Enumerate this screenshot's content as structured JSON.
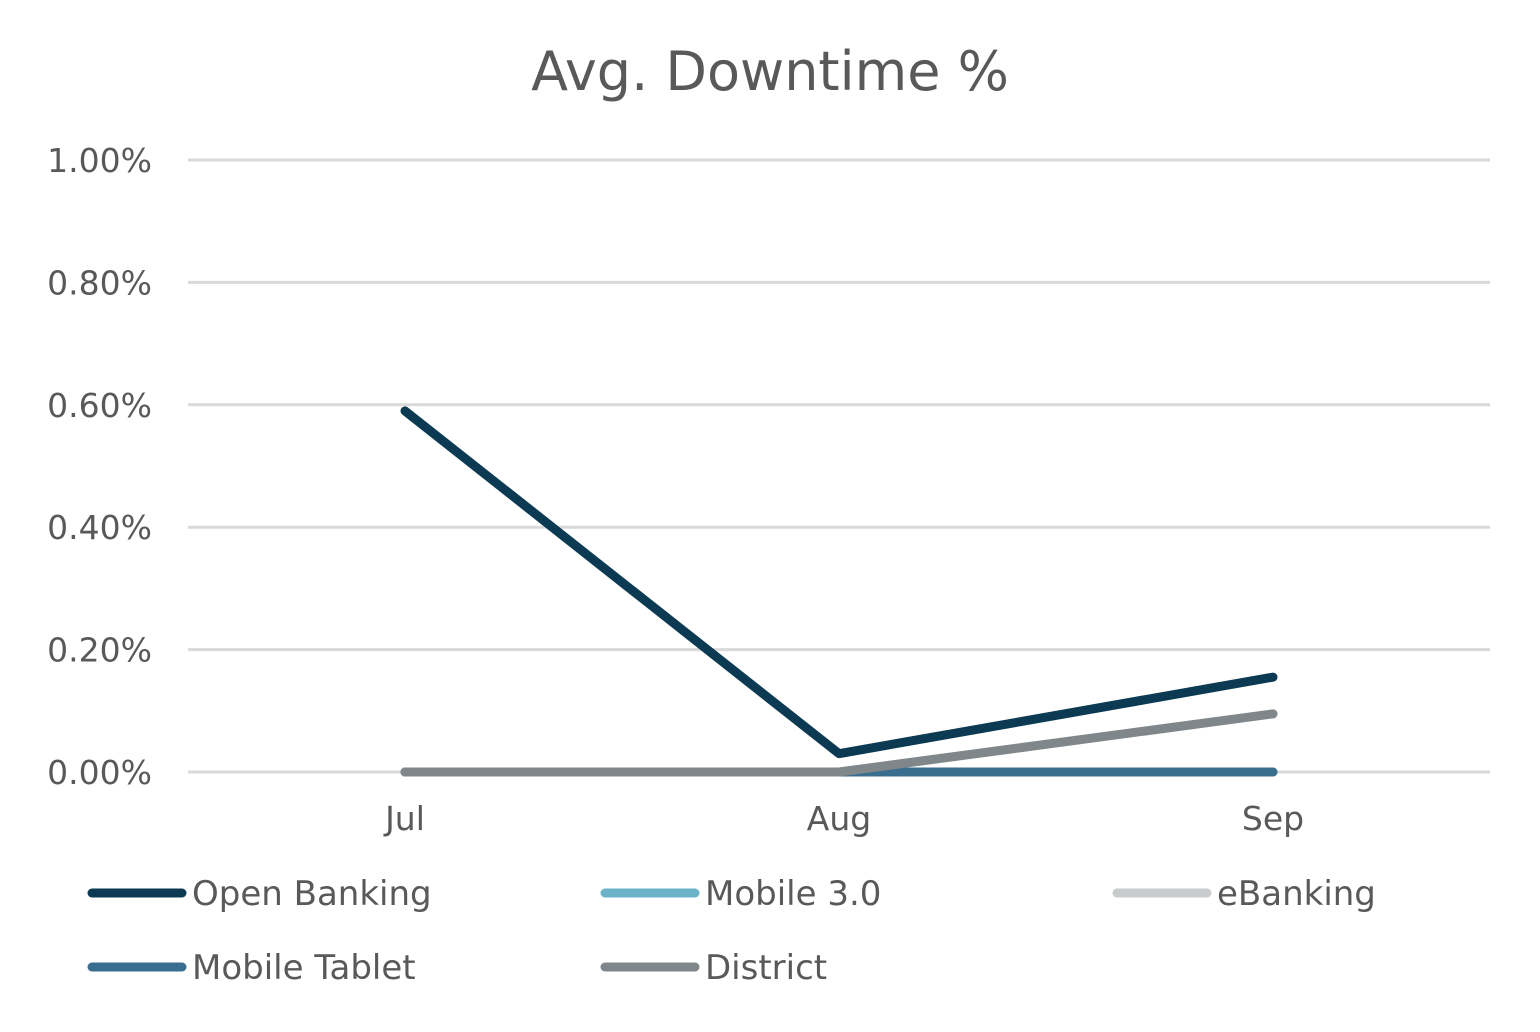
{
  "chart_data": {
    "type": "line",
    "title": "Avg. Downtime %",
    "xlabel": "",
    "ylabel": "",
    "categories": [
      "Jul",
      "Aug",
      "Sep"
    ],
    "ylim": [
      0,
      1.0
    ],
    "y_ticks": [
      {
        "value": 0.0,
        "label": "0.00%"
      },
      {
        "value": 0.2,
        "label": "0.20%"
      },
      {
        "value": 0.4,
        "label": "0.40%"
      },
      {
        "value": 0.6,
        "label": "0.60%"
      },
      {
        "value": 0.8,
        "label": "0.80%"
      },
      {
        "value": 1.0,
        "label": "1.00%"
      }
    ],
    "grid": true,
    "legend_position": "bottom",
    "series": [
      {
        "name": "Open Banking",
        "color": "#0b3a52",
        "values": [
          0.59,
          0.03,
          0.155
        ]
      },
      {
        "name": "Mobile 3.0",
        "color": "#6bb3c9",
        "values": [
          0,
          0,
          0
        ]
      },
      {
        "name": "eBanking",
        "color": "#c8cccc",
        "values": [
          0,
          0,
          0
        ]
      },
      {
        "name": "Mobile Tablet",
        "color": "#3a6e8f",
        "values": [
          0,
          0,
          0
        ]
      },
      {
        "name": "District",
        "color": "#7f878a",
        "values": [
          0,
          0,
          0.095
        ]
      }
    ],
    "draw_order": [
      1,
      2,
      3,
      4,
      0
    ]
  }
}
